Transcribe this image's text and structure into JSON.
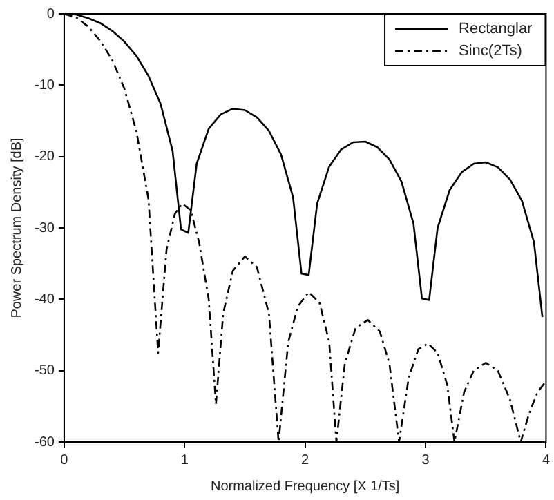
{
  "chart_data": {
    "type": "line",
    "xlabel": "Normalized Frequency [X 1/Ts]",
    "ylabel": "Power Spectrum Density [dB]",
    "xlim": [
      0,
      4
    ],
    "xticks": [
      0,
      1,
      2,
      3,
      4
    ],
    "ylim": [
      -60,
      0
    ],
    "yticks": [
      -60,
      -50,
      -40,
      -30,
      -20,
      -10,
      0
    ],
    "grid": false,
    "legend": "top right",
    "marker": "none",
    "series": [
      {
        "name": "Rectanglar",
        "color": "#000000",
        "line_style": "solid",
        "x": [
          0,
          0.1,
          0.2,
          0.3,
          0.4,
          0.5,
          0.6,
          0.7,
          0.8,
          0.9,
          0.97,
          1.03,
          1.1,
          1.2,
          1.3,
          1.4,
          1.5,
          1.6,
          1.7,
          1.8,
          1.9,
          1.97,
          2.03,
          2.1,
          2.2,
          2.3,
          2.4,
          2.5,
          2.6,
          2.7,
          2.8,
          2.9,
          2.97,
          3.03,
          3.1,
          3.2,
          3.3,
          3.4,
          3.5,
          3.6,
          3.7,
          3.8,
          3.9,
          3.97
        ],
        "values": [
          0,
          -0.1,
          -0.6,
          -1.3,
          -2.4,
          -3.9,
          -5.9,
          -8.7,
          -12.6,
          -19.2,
          -30.2,
          -30.7,
          -21,
          -16.1,
          -14.1,
          -13.3,
          -13.5,
          -14.5,
          -16.4,
          -19.7,
          -25.7,
          -36.4,
          -36.6,
          -26.6,
          -21.4,
          -19,
          -18,
          -17.9,
          -18.7,
          -20.4,
          -23.5,
          -29.4,
          -39.9,
          -40.1,
          -30,
          -24.7,
          -22.2,
          -21,
          -20.8,
          -21.5,
          -23.2,
          -26.2,
          -32,
          -42.5
        ]
      },
      {
        "name": "Sinc(2Ts)",
        "color": "#000000",
        "line_style": "dashed",
        "x": [
          0,
          0.1,
          0.2,
          0.3,
          0.4,
          0.5,
          0.6,
          0.7,
          0.78,
          0.85,
          0.92,
          0.98,
          1.05,
          1.12,
          1.2,
          1.26,
          1.32,
          1.4,
          1.5,
          1.6,
          1.7,
          1.78,
          1.86,
          1.94,
          2.03,
          2.12,
          2.2,
          2.26,
          2.33,
          2.42,
          2.52,
          2.62,
          2.7,
          2.78,
          2.86,
          2.94,
          3.02,
          3.1,
          3.18,
          3.24,
          3.32,
          3.4,
          3.5,
          3.6,
          3.7,
          3.79,
          3.86,
          3.93,
          3.99
        ],
        "values": [
          0,
          -0.5,
          -1.8,
          -3.8,
          -6.5,
          -10.5,
          -16.5,
          -26,
          -47.5,
          -33,
          -28,
          -26.6,
          -27.5,
          -32,
          -40,
          -54.7,
          -42,
          -36,
          -34,
          -35.5,
          -42,
          -60,
          -46,
          -41,
          -39,
          -40.5,
          -46,
          -60,
          -49,
          -44,
          -42.9,
          -44.5,
          -49,
          -60,
          -51,
          -47,
          -46.2,
          -47.5,
          -52,
          -60,
          -53,
          -50,
          -48.9,
          -50,
          -54,
          -60,
          -56,
          -53,
          -51.7
        ]
      }
    ]
  }
}
